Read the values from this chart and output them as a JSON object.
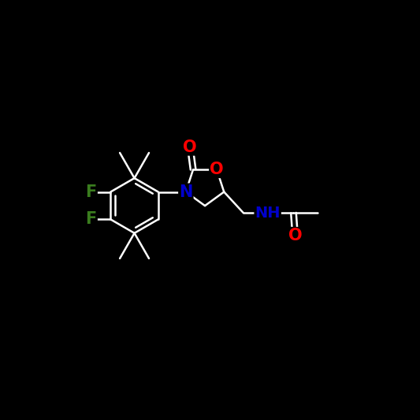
{
  "background_color": "#000000",
  "bond_color": "#ffffff",
  "atom_colors": {
    "F": "#3a7d1e",
    "N": "#0000cc",
    "O": "#ff0000",
    "C": "#ffffff",
    "H": "#ffffff"
  },
  "figsize": [
    5.33,
    5.33
  ],
  "dpi": 100,
  "lw": 1.8,
  "fontsize": 14
}
